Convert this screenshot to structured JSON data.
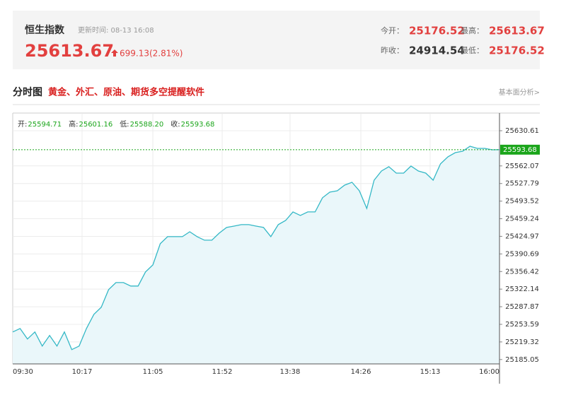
{
  "header": {
    "title": "恒生指数",
    "update_time": "更新时间: 08-13 16:08",
    "price": "25613.67",
    "change": "699.13(2.81%)",
    "stats": [
      [
        {
          "label": "今开：",
          "value": "25176.52",
          "color": "#e2403f"
        },
        {
          "label": "最高：",
          "value": "25613.67",
          "color": "#e2403f"
        }
      ],
      [
        {
          "label": "昨收：",
          "value": "24914.54",
          "color": "#333333"
        },
        {
          "label": "最低：",
          "value": "25176.52",
          "color": "#e2403f"
        }
      ]
    ]
  },
  "section": {
    "title": "分时图",
    "promo": "黄金、外汇、原油、期货多空提醒软件",
    "link": "基本面分析>"
  },
  "chart_data": {
    "type": "line",
    "info": [
      {
        "label": "开:",
        "value": "25594.71"
      },
      {
        "label": "高:",
        "value": "25601.16"
      },
      {
        "label": "低:",
        "value": "25588.20"
      },
      {
        "label": "收:",
        "value": "25593.68"
      }
    ],
    "x": [
      0,
      5,
      10,
      15,
      20,
      25,
      30,
      35,
      40,
      45,
      50,
      55,
      60,
      65,
      70,
      75,
      80,
      85,
      90,
      95,
      100,
      105,
      110,
      115,
      120,
      125,
      130,
      135,
      140,
      145,
      150,
      155,
      160,
      165,
      170,
      175,
      180,
      185,
      190,
      195,
      200,
      205,
      210,
      215,
      220,
      225,
      230,
      235,
      240,
      245,
      250,
      255,
      260,
      265,
      270,
      275,
      280,
      285,
      290,
      295,
      300,
      305,
      310,
      315,
      320,
      325,
      330
    ],
    "series": [
      {
        "color": "#34b8c6",
        "fill": "#eaf7fa",
        "values": [
          25238.7,
          25245.5,
          25224.9,
          25238.7,
          25211.2,
          25231.8,
          25211.2,
          25238.7,
          25204.3,
          25211.2,
          25245.5,
          25273.0,
          25286.8,
          25321.2,
          25334.9,
          25334.9,
          25328.1,
          25328.1,
          25355.6,
          25369.3,
          25410.6,
          25424.3,
          25424.3,
          25424.3,
          25433.9,
          25424.3,
          25417.4,
          25417.4,
          25431.2,
          25442.2,
          25444.9,
          25447.7,
          25447.7,
          25444.9,
          25442.2,
          25424.3,
          25447.7,
          25455.9,
          25472.5,
          25465.6,
          25472.5,
          25472.5,
          25500.0,
          25511.0,
          25513.7,
          25524.7,
          25530.2,
          25513.7,
          25479.3,
          25534.3,
          25552.2,
          25560.5,
          25548.1,
          25548.1,
          25561.8,
          25552.2,
          25548.1,
          25534.3,
          25566.0,
          25579.7,
          25588.0,
          25590.7,
          25600.3,
          25596.2,
          25596.2,
          25593.5,
          25593.68
        ]
      }
    ],
    "last_price": 25593.68,
    "last_color": "#1aa51a",
    "xlim": [
      0,
      330
    ],
    "xticks": [
      {
        "value": 0,
        "label": "09:30"
      },
      {
        "value": 47,
        "label": "10:17"
      },
      {
        "value": 95,
        "label": "11:05"
      },
      {
        "value": 142,
        "label": "11:52"
      },
      {
        "value": 188,
        "label": "13:38"
      },
      {
        "value": 236,
        "label": "14:26"
      },
      {
        "value": 283,
        "label": "15:13"
      },
      {
        "value": 330,
        "label": "16:00"
      }
    ],
    "ylim": [
      25176.52,
      25665
    ],
    "yticks": [
      25630.61,
      25562.07,
      25527.79,
      25493.52,
      25459.24,
      25424.97,
      25390.69,
      25356.42,
      25322.14,
      25287.87,
      25253.59,
      25219.32,
      25185.05
    ],
    "grid": true
  }
}
